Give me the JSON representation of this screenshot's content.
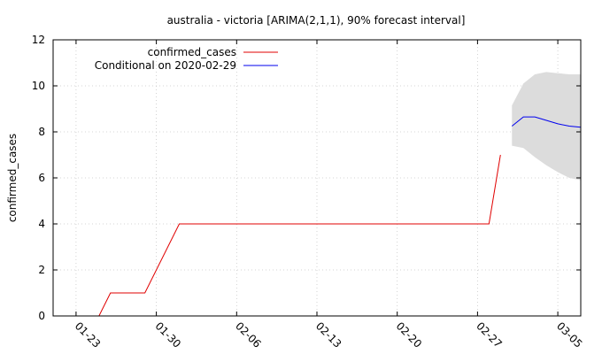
{
  "chart_data": {
    "type": "line",
    "title": "australia - victoria [ARIMA(2,1,1), 90% forecast interval]",
    "ylabel": "confirmed_cases",
    "xlabel": "",
    "ylim": [
      0,
      12
    ],
    "yticks": [
      0,
      2,
      4,
      6,
      8,
      10,
      12
    ],
    "x_is_date": true,
    "xlim": [
      "2020-01-21",
      "2020-03-07"
    ],
    "xticks": [
      {
        "date": "2020-01-23",
        "label": "01-23"
      },
      {
        "date": "2020-01-30",
        "label": "01-30"
      },
      {
        "date": "2020-02-06",
        "label": "02-06"
      },
      {
        "date": "2020-02-13",
        "label": "02-13"
      },
      {
        "date": "2020-02-20",
        "label": "02-20"
      },
      {
        "date": "2020-02-27",
        "label": "02-27"
      },
      {
        "date": "2020-03-05",
        "label": "03-05"
      }
    ],
    "grid": true,
    "legend_position": "top-left",
    "series": [
      {
        "name": "confirmed_cases",
        "color": "#e00000",
        "points": [
          [
            "2020-01-25",
            0
          ],
          [
            "2020-01-26",
            1
          ],
          [
            "2020-01-27",
            1
          ],
          [
            "2020-01-28",
            1
          ],
          [
            "2020-01-29",
            1
          ],
          [
            "2020-02-01",
            4
          ],
          [
            "2020-02-05",
            4
          ],
          [
            "2020-02-10",
            4
          ],
          [
            "2020-02-15",
            4
          ],
          [
            "2020-02-20",
            4
          ],
          [
            "2020-02-25",
            4
          ],
          [
            "2020-02-28",
            4
          ],
          [
            "2020-02-29",
            7
          ]
        ]
      },
      {
        "name": "Conditional on 2020-02-29",
        "color": "#0000ee",
        "points": [
          [
            "2020-03-01",
            8.25
          ],
          [
            "2020-03-02",
            8.65
          ],
          [
            "2020-03-03",
            8.65
          ],
          [
            "2020-03-04",
            8.5
          ],
          [
            "2020-03-05",
            8.35
          ],
          [
            "2020-03-06",
            8.25
          ],
          [
            "2020-03-07",
            8.2
          ]
        ]
      }
    ],
    "interval": {
      "color": "#dcdcdc",
      "points": [
        [
          "2020-03-01",
          7.4,
          9.15
        ],
        [
          "2020-03-02",
          7.3,
          10.1
        ],
        [
          "2020-03-03",
          6.9,
          10.5
        ],
        [
          "2020-03-04",
          6.55,
          10.6
        ],
        [
          "2020-03-05",
          6.25,
          10.55
        ],
        [
          "2020-03-06",
          6.0,
          10.5
        ],
        [
          "2020-03-07",
          5.9,
          10.5
        ]
      ]
    }
  }
}
